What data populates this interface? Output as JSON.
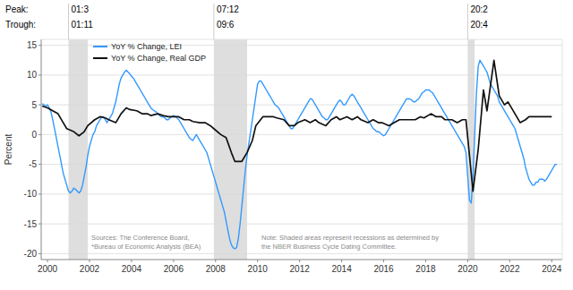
{
  "chart_data": {
    "type": "line",
    "ylabel": "Percent",
    "xlim": [
      1999.7,
      2024.5
    ],
    "ylim": [
      -21,
      16
    ],
    "xticks": [
      2000,
      2002,
      2004,
      2006,
      2008,
      2010,
      2012,
      2014,
      2016,
      2018,
      2020,
      2022,
      2024
    ],
    "yticks": [
      -20,
      -15,
      -10,
      -5,
      0,
      5,
      10,
      15
    ],
    "grid": true,
    "legend": "upper left",
    "series": [
      {
        "name": "YoY % Change, LEI",
        "color": "#3399FF",
        "x": [
          1999.75,
          1999.833,
          1999.917,
          2000.0,
          2000.083,
          2000.167,
          2000.25,
          2000.333,
          2000.417,
          2000.5,
          2000.583,
          2000.667,
          2000.75,
          2000.833,
          2000.917,
          2001.0,
          2001.083,
          2001.167,
          2001.25,
          2001.333,
          2001.417,
          2001.5,
          2001.583,
          2001.667,
          2001.75,
          2001.833,
          2001.917,
          2002.0,
          2002.083,
          2002.167,
          2002.25,
          2002.333,
          2002.417,
          2002.5,
          2002.583,
          2002.667,
          2002.75,
          2002.833,
          2002.917,
          2003.0,
          2003.083,
          2003.167,
          2003.25,
          2003.333,
          2003.417,
          2003.5,
          2003.583,
          2003.667,
          2003.75,
          2003.833,
          2003.917,
          2004.0,
          2004.083,
          2004.167,
          2004.25,
          2004.333,
          2004.417,
          2004.5,
          2004.583,
          2004.667,
          2004.75,
          2004.833,
          2004.917,
          2005.0,
          2005.083,
          2005.167,
          2005.25,
          2005.333,
          2005.417,
          2005.5,
          2005.583,
          2005.667,
          2005.75,
          2005.833,
          2005.917,
          2006.0,
          2006.083,
          2006.167,
          2006.25,
          2006.333,
          2006.417,
          2006.5,
          2006.583,
          2006.667,
          2006.75,
          2006.833,
          2006.917,
          2007.0,
          2007.083,
          2007.167,
          2007.25,
          2007.333,
          2007.417,
          2007.5,
          2007.583,
          2007.667,
          2007.75,
          2007.833,
          2007.917,
          2008.0,
          2008.083,
          2008.167,
          2008.25,
          2008.333,
          2008.417,
          2008.5,
          2008.583,
          2008.667,
          2008.75,
          2008.833,
          2008.917,
          2009.0,
          2009.083,
          2009.167,
          2009.25,
          2009.333,
          2009.417,
          2009.5,
          2009.583,
          2009.667,
          2009.75,
          2009.833,
          2009.917,
          2010.0,
          2010.083,
          2010.167,
          2010.25,
          2010.333,
          2010.417,
          2010.5,
          2010.583,
          2010.667,
          2010.75,
          2010.833,
          2010.917,
          2011.0,
          2011.083,
          2011.167,
          2011.25,
          2011.333,
          2011.417,
          2011.5,
          2011.583,
          2011.667,
          2011.75,
          2011.833,
          2011.917,
          2012.0,
          2012.083,
          2012.167,
          2012.25,
          2012.333,
          2012.417,
          2012.5,
          2012.583,
          2012.667,
          2012.75,
          2012.833,
          2012.917,
          2013.0,
          2013.083,
          2013.167,
          2013.25,
          2013.333,
          2013.417,
          2013.5,
          2013.583,
          2013.667,
          2013.75,
          2013.833,
          2013.917,
          2014.0,
          2014.083,
          2014.167,
          2014.25,
          2014.333,
          2014.417,
          2014.5,
          2014.583,
          2014.667,
          2014.75,
          2014.833,
          2014.917,
          2015.0,
          2015.083,
          2015.167,
          2015.25,
          2015.333,
          2015.417,
          2015.5,
          2015.583,
          2015.667,
          2015.75,
          2015.833,
          2015.917,
          2016.0,
          2016.083,
          2016.167,
          2016.25,
          2016.333,
          2016.417,
          2016.5,
          2016.583,
          2016.667,
          2016.75,
          2016.833,
          2016.917,
          2017.0,
          2017.083,
          2017.167,
          2017.25,
          2017.333,
          2017.417,
          2017.5,
          2017.583,
          2017.667,
          2017.75,
          2017.833,
          2017.917,
          2018.0,
          2018.083,
          2018.167,
          2018.25,
          2018.333,
          2018.417,
          2018.5,
          2018.583,
          2018.667,
          2018.75,
          2018.833,
          2018.917,
          2019.0,
          2019.083,
          2019.167,
          2019.25,
          2019.333,
          2019.417,
          2019.5,
          2019.583,
          2019.667,
          2019.75,
          2019.833,
          2019.917,
          2020.0,
          2020.083,
          2020.167,
          2020.25,
          2020.333,
          2020.417,
          2020.5,
          2020.583,
          2020.667,
          2020.75,
          2020.833,
          2020.917,
          2021.0,
          2021.083,
          2021.167,
          2021.25,
          2021.333,
          2021.417,
          2021.5,
          2021.583,
          2021.667,
          2021.75,
          2021.833,
          2021.917,
          2022.0,
          2022.083,
          2022.167,
          2022.25,
          2022.333,
          2022.417,
          2022.5,
          2022.583,
          2022.667,
          2022.75,
          2022.833,
          2022.917,
          2023.0,
          2023.083,
          2023.167,
          2023.25,
          2023.333,
          2023.417,
          2023.5,
          2023.583,
          2023.667,
          2023.75,
          2023.833,
          2023.917,
          2024.0,
          2024.083,
          2024.167,
          2024.25
        ],
        "values": [
          5.2,
          5.0,
          4.8,
          5.0,
          4.5,
          3.8,
          2.5,
          1.0,
          -0.5,
          -2.0,
          -3.5,
          -5.0,
          -6.5,
          -7.5,
          -8.5,
          -9.5,
          -9.8,
          -9.5,
          -9.0,
          -9.2,
          -9.5,
          -9.8,
          -9.5,
          -8.5,
          -7.0,
          -5.5,
          -3.5,
          -2.0,
          -1.0,
          0.0,
          0.5,
          1.5,
          2.0,
          2.5,
          3.0,
          3.0,
          2.5,
          2.0,
          2.5,
          3.0,
          3.5,
          4.5,
          5.5,
          7.0,
          8.5,
          9.5,
          10.0,
          10.5,
          10.8,
          10.5,
          10.2,
          9.8,
          9.5,
          9.0,
          8.5,
          8.0,
          7.5,
          7.0,
          6.5,
          6.0,
          5.5,
          5.0,
          4.5,
          4.2,
          4.0,
          3.8,
          3.5,
          3.2,
          3.0,
          3.0,
          2.8,
          2.5,
          2.5,
          2.8,
          3.0,
          3.2,
          3.0,
          2.8,
          2.5,
          2.0,
          1.5,
          1.0,
          0.5,
          0.0,
          -0.5,
          -0.8,
          -1.0,
          -0.5,
          0.0,
          -0.5,
          -1.0,
          -1.5,
          -2.0,
          -2.5,
          -3.0,
          -4.0,
          -5.0,
          -6.0,
          -7.0,
          -8.0,
          -9.0,
          -10.0,
          -11.0,
          -12.0,
          -13.0,
          -14.5,
          -16.0,
          -17.5,
          -18.5,
          -19.0,
          -19.2,
          -19.0,
          -17.5,
          -15.0,
          -12.0,
          -9.0,
          -6.0,
          -3.5,
          -1.5,
          0.5,
          2.5,
          4.5,
          6.5,
          8.5,
          9.0,
          9.0,
          8.5,
          8.0,
          7.5,
          7.0,
          6.5,
          6.0,
          5.5,
          5.0,
          4.8,
          4.5,
          4.0,
          3.5,
          3.0,
          2.5,
          2.0,
          1.5,
          1.0,
          1.0,
          1.5,
          2.0,
          2.5,
          3.0,
          3.5,
          4.0,
          4.5,
          5.0,
          5.5,
          6.0,
          6.0,
          5.5,
          5.0,
          4.5,
          4.0,
          3.5,
          3.0,
          2.8,
          2.5,
          2.5,
          3.0,
          3.5,
          4.0,
          4.5,
          5.0,
          5.5,
          5.8,
          5.5,
          5.0,
          5.0,
          5.5,
          6.0,
          6.5,
          6.8,
          6.5,
          6.0,
          5.5,
          5.0,
          4.5,
          4.0,
          3.5,
          3.0,
          2.5,
          2.0,
          1.5,
          1.0,
          0.8,
          0.5,
          0.5,
          0.3,
          0.0,
          -0.2,
          0.0,
          0.5,
          1.0,
          1.5,
          2.0,
          2.5,
          3.0,
          3.5,
          4.0,
          4.5,
          5.0,
          5.5,
          6.0,
          6.0,
          6.0,
          5.8,
          5.5,
          5.5,
          5.8,
          6.0,
          6.5,
          7.0,
          7.2,
          7.5,
          7.5,
          7.5,
          7.2,
          7.0,
          6.5,
          6.0,
          5.5,
          5.0,
          4.5,
          4.0,
          3.5,
          3.0,
          2.5,
          2.0,
          1.5,
          1.0,
          0.5,
          0.0,
          -0.5,
          -1.0,
          -1.5,
          -2.0,
          -3.0,
          -7.0,
          -11.0,
          -11.5,
          -7.0,
          0.0,
          7.0,
          11.5,
          12.5,
          12.0,
          11.5,
          11.0,
          10.5,
          9.5,
          8.5,
          8.0,
          7.5,
          7.0,
          6.5,
          5.5,
          5.0,
          4.5,
          4.0,
          3.5,
          3.0,
          2.5,
          2.0,
          1.5,
          1.0,
          0.0,
          -1.0,
          -2.0,
          -3.0,
          -4.0,
          -5.5,
          -6.5,
          -7.5,
          -8.0,
          -8.5,
          -8.5,
          -8.0,
          -8.0,
          -7.5,
          -7.5,
          -7.5,
          -7.8,
          -7.5,
          -7.0,
          -6.5,
          -6.0,
          -5.5,
          -5.0,
          -5.0
        ]
      },
      {
        "name": "YoY % Change, Real GDP",
        "color": "#111111",
        "x": [
          1999.75,
          2000.0,
          2000.25,
          2000.5,
          2000.75,
          2000.917,
          2001.25,
          2001.5,
          2001.75,
          2001.917,
          2002.25,
          2002.5,
          2002.75,
          2002.917,
          2003.25,
          2003.5,
          2003.75,
          2003.917,
          2004.25,
          2004.5,
          2004.75,
          2004.917,
          2005.25,
          2005.5,
          2005.75,
          2005.917,
          2006.25,
          2006.5,
          2006.75,
          2006.917,
          2007.25,
          2007.5,
          2007.75,
          2007.917,
          2008.25,
          2008.5,
          2008.75,
          2008.917,
          2009.25,
          2009.5,
          2009.75,
          2009.917,
          2010.25,
          2010.5,
          2010.75,
          2010.917,
          2011.25,
          2011.5,
          2011.75,
          2011.917,
          2012.25,
          2012.5,
          2012.75,
          2012.917,
          2013.25,
          2013.5,
          2013.75,
          2013.917,
          2014.25,
          2014.5,
          2014.75,
          2014.917,
          2015.25,
          2015.5,
          2015.75,
          2015.917,
          2016.25,
          2016.5,
          2016.75,
          2016.917,
          2017.25,
          2017.5,
          2017.75,
          2017.917,
          2018.25,
          2018.5,
          2018.75,
          2018.917,
          2019.25,
          2019.5,
          2019.75,
          2019.917,
          2020.0,
          2020.25,
          2020.5,
          2020.75,
          2020.917,
          2021.25,
          2021.5,
          2021.75,
          2021.917,
          2022.25,
          2022.5,
          2022.75,
          2022.917,
          2023.25,
          2023.5,
          2023.75,
          2023.917,
          2024.0
        ],
        "values": [
          4.8,
          4.5,
          4.0,
          3.5,
          2.0,
          1.0,
          0.5,
          -0.2,
          0.5,
          1.5,
          2.5,
          3.0,
          2.8,
          2.5,
          2.0,
          3.5,
          4.5,
          4.2,
          4.0,
          3.5,
          3.5,
          3.2,
          3.5,
          3.2,
          3.0,
          3.0,
          3.0,
          2.5,
          2.5,
          2.2,
          2.0,
          2.0,
          1.5,
          1.0,
          0.0,
          -0.5,
          -3.0,
          -4.5,
          -4.5,
          -3.0,
          -1.0,
          1.5,
          3.0,
          3.0,
          3.0,
          2.8,
          2.5,
          1.5,
          1.5,
          2.0,
          2.5,
          2.0,
          2.5,
          2.0,
          1.5,
          2.5,
          3.0,
          2.5,
          3.0,
          2.5,
          3.0,
          2.5,
          2.0,
          2.5,
          2.0,
          2.0,
          1.5,
          2.0,
          2.5,
          2.5,
          2.5,
          2.5,
          3.0,
          2.8,
          3.5,
          3.0,
          3.0,
          2.5,
          2.5,
          2.0,
          2.5,
          2.5,
          -0.5,
          -9.5,
          -2.5,
          7.5,
          4.0,
          12.5,
          6.5,
          5.0,
          5.5,
          3.5,
          2.0,
          2.5,
          3.0,
          3.0,
          3.0,
          3.0,
          3.0,
          3.0
        ]
      }
    ],
    "recession_shading": [
      {
        "start": 2001.0,
        "end": 2001.92
      },
      {
        "start": 2007.92,
        "end": 2009.5
      },
      {
        "start": 2020.0,
        "end": 2020.33
      }
    ],
    "peak_header": "Peak:",
    "trough_header": "Trough:",
    "peak_labels": [
      "01:3",
      "07:12",
      "20:2"
    ],
    "trough_labels": [
      "01:11",
      "09:6",
      "20:4"
    ],
    "note": "Note: Shaded areas represent recessions as determined by\nthe NBER Business Cycle Dating Committee.",
    "source": "Sources: The Conference Board,\n*Bureau of Economic Analysis (BEA)"
  }
}
